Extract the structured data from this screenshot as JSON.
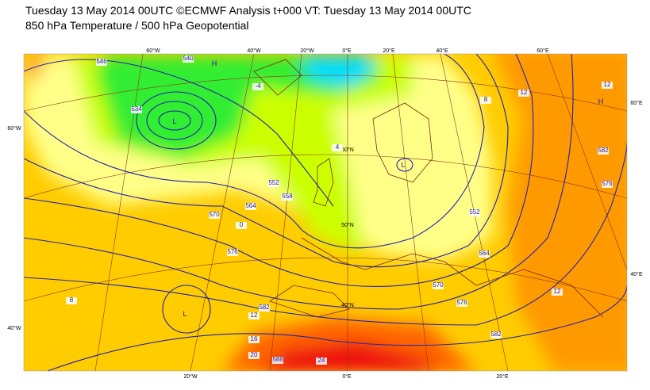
{
  "header": {
    "title": "Tuesday 13 May 2014 00UTC ©ECMWF Analysis t+000 VT: Tuesday 13 May 2014 00UTC",
    "subtitle": "850 hPa Temperature / 500 hPa Geopotential"
  },
  "map": {
    "lon_labels_top": [
      "60°W",
      "40°W",
      "20°W",
      "0°E",
      "20°E",
      "40°E",
      "60°E"
    ],
    "lon_labels_bottom": [
      "20°W",
      "0°E",
      "20°E"
    ],
    "lat_labels_left": [
      "60°W",
      "40°W"
    ],
    "lat_labels_right": [
      "60°E",
      "40°E"
    ],
    "lat_labels_inner": [
      "60°N",
      "50°N",
      "40°N"
    ],
    "contour_labels": [
      "534",
      "540",
      "546",
      "552",
      "558",
      "564",
      "570",
      "576",
      "582",
      "588",
      "552",
      "564",
      "570",
      "576",
      "582",
      "582",
      "576"
    ],
    "temperature_labels": [
      "12",
      "12",
      "16",
      "20",
      "24",
      "8",
      "4",
      "0",
      "-4",
      "12",
      "12",
      "8"
    ],
    "pressure_centers": [
      "H",
      "L",
      "L",
      "H",
      "L"
    ]
  }
}
